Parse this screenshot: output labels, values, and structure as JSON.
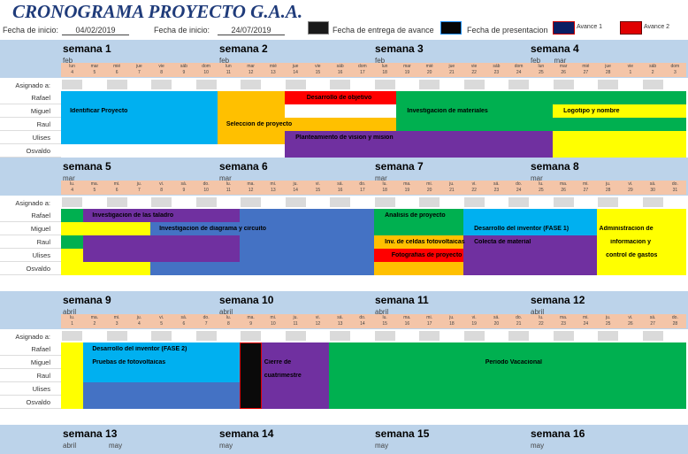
{
  "header": {
    "title": "CRONOGRAMA PROYECTO G.A.A.",
    "start_label": "Fecha de inicio:",
    "start_value": "04/02/2019",
    "end_label": "Fecha de inicio:",
    "end_value": "24/07/2019",
    "legend": [
      {
        "label": "Fecha de entrega de avance",
        "color": "#1a1a1a"
      },
      {
        "label": "Fecha de presentacion",
        "color": "#050505"
      },
      {
        "label": "Avance 1",
        "color": "#0b1e63"
      },
      {
        "label": "Avance 2",
        "color": "#e00000"
      }
    ]
  },
  "colors": {
    "blue": "#00b0f0",
    "orange": "#ffc000",
    "red": "#ff0000",
    "green": "#00b050",
    "yellow": "#ffff00",
    "purple": "#7030a0",
    "dblue": "#4472c4",
    "black": "#0a0a0a",
    "band": "#bcd3ea",
    "days": "#f4c5a8"
  },
  "labels": {
    "assigned": "Asignado a:",
    "people": [
      "Rafael",
      "Miguel",
      "Raul",
      "Ulises",
      "Osvaldo"
    ]
  },
  "sections": [
    {
      "weeks": [
        {
          "name": "semana 1",
          "month": "feb"
        },
        {
          "name": "semana 2",
          "month": "feb"
        },
        {
          "name": "semana 3",
          "month": "feb"
        },
        {
          "name": "semana 4",
          "month": "feb"
        }
      ],
      "extra_months": [
        {
          "text": "mar",
          "col": 22
        }
      ],
      "days": [
        "lun",
        "mar",
        "mié",
        "jue",
        "vie",
        "sáb",
        "dom",
        "lun",
        "mar",
        "mié",
        "jue",
        "vie",
        "sáb",
        "dom",
        "lun",
        "mar",
        "mié",
        "jue",
        "vie",
        "sáb",
        "dom",
        "lun",
        "mar",
        "mié",
        "jue",
        "vie",
        "sáb",
        "dom"
      ],
      "dates": [
        "4",
        "5",
        "6",
        "7",
        "8",
        "9",
        "10",
        "11",
        "12",
        "13",
        "14",
        "15",
        "16",
        "17",
        "18",
        "19",
        "20",
        "21",
        "22",
        "23",
        "24",
        "25",
        "26",
        "27",
        "28",
        "1",
        "2",
        "3"
      ],
      "bars": [
        {
          "rows": [
            0,
            4
          ],
          "cols": [
            0,
            7
          ],
          "color": "blue"
        },
        {
          "rows": [
            0,
            4
          ],
          "cols": [
            7,
            10
          ],
          "color": "orange"
        },
        {
          "rows": [
            0,
            1
          ],
          "cols": [
            10,
            15
          ],
          "color": "red",
          "label": "Desarrollo de objetivo",
          "lrow": 0,
          "lcol": 11
        },
        {
          "rows": [
            0,
            1
          ],
          "cols": [
            15,
            28
          ],
          "color": "green"
        },
        {
          "rows": [
            1,
            2
          ],
          "cols": [
            15,
            22
          ],
          "color": "green",
          "label": "Investigacion de materiales",
          "lrow": 1,
          "lcol": 15.5
        },
        {
          "rows": [
            1,
            2
          ],
          "cols": [
            22,
            28
          ],
          "color": "yellow",
          "label": "Logotipo y nombre",
          "lrow": 1,
          "lcol": 22.5
        },
        {
          "rows": [
            2,
            3
          ],
          "cols": [
            10,
            15
          ],
          "color": "orange"
        },
        {
          "rows": [
            2,
            3
          ],
          "cols": [
            15,
            28
          ],
          "color": "green"
        },
        {
          "rows": [
            3,
            5
          ],
          "cols": [
            10,
            22
          ],
          "color": "purple"
        },
        {
          "rows": [
            3,
            5
          ],
          "cols": [
            22,
            28
          ],
          "color": "yellow"
        },
        {
          "rows": [
            1,
            2
          ],
          "cols": [
            0,
            1
          ],
          "label": "Identificar Proyecto",
          "lrow": 1,
          "lcol": 0.4
        },
        {
          "rows": [
            2,
            3
          ],
          "cols": [
            0,
            1
          ],
          "label": "Seleccion de proyecto",
          "lrow": 2,
          "lcol": 7.4
        },
        {
          "rows": [
            3,
            4
          ],
          "cols": [
            0,
            1
          ],
          "label": "Planteamiento de vision y mision",
          "lrow": 3,
          "lcol": 10.5
        }
      ]
    },
    {
      "weeks": [
        {
          "name": "semana 5",
          "month": "mar"
        },
        {
          "name": "semana 6",
          "month": "mar"
        },
        {
          "name": "semana 7",
          "month": "mar"
        },
        {
          "name": "semana 8",
          "month": "mar"
        }
      ],
      "extra_months": [],
      "days": [
        "lu.",
        "ma.",
        "mi.",
        "ju.",
        "vi.",
        "sá.",
        "do.",
        "lu.",
        "ma.",
        "mi.",
        "ju.",
        "vi.",
        "sá.",
        "do.",
        "lu.",
        "ma.",
        "mi.",
        "ju.",
        "vi.",
        "sá.",
        "do.",
        "lu.",
        "ma.",
        "mi.",
        "ju.",
        "vi.",
        "sá.",
        "do."
      ],
      "dates": [
        "4",
        "5",
        "6",
        "7",
        "8",
        "9",
        "10",
        "11",
        "12",
        "13",
        "14",
        "15",
        "16",
        "17",
        "18",
        "19",
        "20",
        "21",
        "22",
        "23",
        "24",
        "25",
        "26",
        "27",
        "28",
        "29",
        "30",
        "31"
      ],
      "bars": [
        {
          "rows": [
            0,
            1
          ],
          "cols": [
            0,
            1
          ],
          "color": "green"
        },
        {
          "rows": [
            0,
            1
          ],
          "cols": [
            1,
            8
          ],
          "color": "purple"
        },
        {
          "rows": [
            0,
            1
          ],
          "cols": [
            8,
            14
          ],
          "color": "dblue"
        },
        {
          "rows": [
            0,
            1
          ],
          "cols": [
            14,
            18
          ],
          "color": "green"
        },
        {
          "rows": [
            0,
            1
          ],
          "cols": [
            18,
            24
          ],
          "color": "blue"
        },
        {
          "rows": [
            1,
            2
          ],
          "cols": [
            0,
            4
          ],
          "color": "yellow"
        },
        {
          "rows": [
            1,
            2
          ],
          "cols": [
            4,
            14
          ],
          "color": "dblue"
        },
        {
          "rows": [
            1,
            2
          ],
          "cols": [
            14,
            18
          ],
          "color": "green"
        },
        {
          "rows": [
            1,
            2
          ],
          "cols": [
            18,
            24
          ],
          "color": "blue"
        },
        {
          "rows": [
            2,
            3
          ],
          "cols": [
            0,
            1
          ],
          "color": "green"
        },
        {
          "rows": [
            2,
            3
          ],
          "cols": [
            1,
            8
          ],
          "color": "purple"
        },
        {
          "rows": [
            2,
            3
          ],
          "cols": [
            8,
            14
          ],
          "color": "dblue"
        },
        {
          "rows": [
            2,
            3
          ],
          "cols": [
            14,
            18
          ],
          "color": "orange"
        },
        {
          "rows": [
            2,
            3
          ],
          "cols": [
            18,
            24
          ],
          "color": "purple"
        },
        {
          "rows": [
            3,
            4
          ],
          "cols": [
            0,
            1
          ],
          "color": "yellow"
        },
        {
          "rows": [
            3,
            4
          ],
          "cols": [
            1,
            8
          ],
          "color": "purple"
        },
        {
          "rows": [
            3,
            4
          ],
          "cols": [
            8,
            14
          ],
          "color": "dblue"
        },
        {
          "rows": [
            3,
            4
          ],
          "cols": [
            14,
            18
          ],
          "color": "red"
        },
        {
          "rows": [
            3,
            4
          ],
          "cols": [
            18,
            24
          ],
          "color": "purple"
        },
        {
          "rows": [
            4,
            5
          ],
          "cols": [
            0,
            4
          ],
          "color": "yellow"
        },
        {
          "rows": [
            4,
            5
          ],
          "cols": [
            4,
            14
          ],
          "color": "dblue"
        },
        {
          "rows": [
            4,
            5
          ],
          "cols": [
            14,
            18
          ],
          "color": "orange"
        },
        {
          "rows": [
            4,
            5
          ],
          "cols": [
            18,
            24
          ],
          "color": "purple"
        },
        {
          "rows": [
            0,
            5
          ],
          "cols": [
            24,
            28
          ],
          "color": "yellow"
        },
        {
          "rows": [
            0,
            1
          ],
          "cols": [
            0,
            1
          ],
          "label": "Investigacion de las taladro",
          "lrow": 0,
          "lcol": 1.4
        },
        {
          "rows": [
            1,
            2
          ],
          "cols": [
            0,
            1
          ],
          "label": "Investigacion de diagrama y circuito",
          "lrow": 1,
          "lcol": 4.4
        },
        {
          "rows": [
            0,
            1
          ],
          "cols": [
            0,
            1
          ],
          "label": "Analisis de proyecto",
          "lrow": 0,
          "lcol": 14.5
        },
        {
          "rows": [
            1,
            2
          ],
          "cols": [
            0,
            1
          ],
          "label": "Desarrollo del inventor (FASE 1)",
          "lrow": 1,
          "lcol": 18.5
        },
        {
          "rows": [
            2,
            3
          ],
          "cols": [
            0,
            1
          ],
          "label": "Inv. de celdas fotovoltaicas",
          "lrow": 2,
          "lcol": 14.5
        },
        {
          "rows": [
            2,
            3
          ],
          "cols": [
            0,
            1
          ],
          "label": "Colecta de material",
          "lrow": 2,
          "lcol": 18.5
        },
        {
          "rows": [
            3,
            4
          ],
          "cols": [
            0,
            1
          ],
          "label": "Fotografias de proyecto",
          "lrow": 3,
          "lcol": 14.8
        },
        {
          "rows": [
            1,
            2
          ],
          "cols": [
            0,
            1
          ],
          "label": "Administracion de",
          "lrow": 1,
          "lcol": 24.1
        },
        {
          "rows": [
            2,
            3
          ],
          "cols": [
            0,
            1
          ],
          "label": "informacion y",
          "lrow": 2,
          "lcol": 24.6
        },
        {
          "rows": [
            3,
            4
          ],
          "cols": [
            0,
            1
          ],
          "label": "control de gastos",
          "lrow": 3,
          "lcol": 24.4
        }
      ]
    },
    {
      "weeks": [
        {
          "name": "semana 9",
          "month": "abril"
        },
        {
          "name": "semana 10",
          "month": "abril"
        },
        {
          "name": "semana 11",
          "month": "abril"
        },
        {
          "name": "semana 12",
          "month": "abril"
        }
      ],
      "extra_months": [],
      "days": [
        "lu.",
        "ma.",
        "mi.",
        "ju.",
        "vi.",
        "sá.",
        "do.",
        "lu.",
        "ma.",
        "mi.",
        "ju.",
        "vi.",
        "sá.",
        "do.",
        "lu.",
        "ma.",
        "mi.",
        "ju.",
        "vi.",
        "sá.",
        "do.",
        "lu.",
        "ma.",
        "mi.",
        "ju.",
        "vi.",
        "sá.",
        "do."
      ],
      "dates": [
        "1",
        "2",
        "3",
        "4",
        "5",
        "6",
        "7",
        "8",
        "9",
        "10",
        "11",
        "12",
        "13",
        "14",
        "15",
        "16",
        "17",
        "18",
        "19",
        "20",
        "21",
        "22",
        "23",
        "24",
        "25",
        "26",
        "27",
        "28"
      ],
      "bars": [
        {
          "rows": [
            0,
            5
          ],
          "cols": [
            0,
            1
          ],
          "color": "yellow"
        },
        {
          "rows": [
            0,
            2
          ],
          "cols": [
            1,
            8
          ],
          "color": "blue"
        },
        {
          "rows": [
            2,
            3
          ],
          "cols": [
            1,
            8
          ],
          "color": "blue"
        },
        {
          "rows": [
            3,
            5
          ],
          "cols": [
            1,
            8
          ],
          "color": "dblue"
        },
        {
          "rows": [
            0,
            5
          ],
          "cols": [
            8,
            9
          ],
          "color": "black"
        },
        {
          "rows": [
            0,
            5
          ],
          "cols": [
            9,
            12
          ],
          "color": "purple"
        },
        {
          "rows": [
            0,
            5
          ],
          "cols": [
            12,
            28
          ],
          "color": "green"
        },
        {
          "rows": [
            0,
            1
          ],
          "cols": [
            0,
            1
          ],
          "label": "Desarrollo del inventor (FASE 2)",
          "lrow": 0,
          "lcol": 1.4
        },
        {
          "rows": [
            1,
            2
          ],
          "cols": [
            0,
            1
          ],
          "label": "Pruebas de fotovoltaicas",
          "lrow": 1,
          "lcol": 1.4
        },
        {
          "rows": [
            1,
            2
          ],
          "cols": [
            0,
            1
          ],
          "label": "Cierre de",
          "lrow": 1,
          "lcol": 9.1
        },
        {
          "rows": [
            2,
            3
          ],
          "cols": [
            0,
            1
          ],
          "label": "cuatrimestre",
          "lrow": 2,
          "lcol": 9.1
        },
        {
          "rows": [
            1,
            2
          ],
          "cols": [
            0,
            1
          ],
          "label": "Periodo Vacacional",
          "lrow": 1,
          "lcol": 19
        }
      ]
    }
  ],
  "footer": {
    "weeks": [
      {
        "name": "semana 13",
        "month": "abril",
        "month2": "may"
      },
      {
        "name": "semana 14",
        "month": "may"
      },
      {
        "name": "semana 15",
        "month": "may"
      },
      {
        "name": "semana 16",
        "month": "may"
      }
    ]
  }
}
